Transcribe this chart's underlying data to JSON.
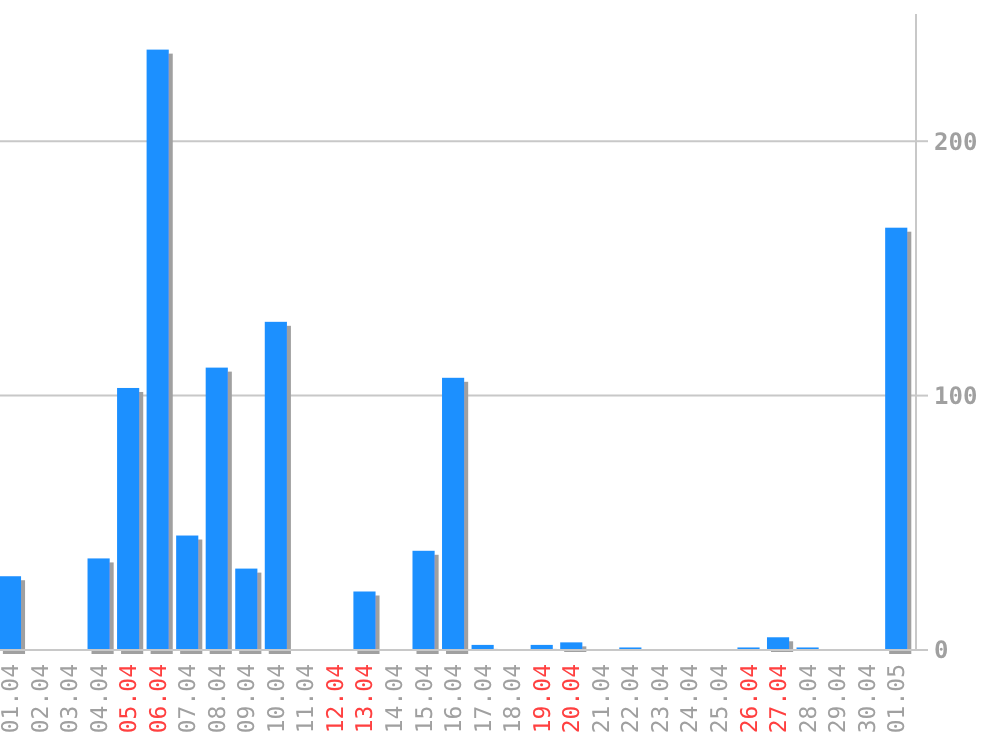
{
  "chart_data": {
    "type": "bar",
    "categories": [
      "01.04",
      "02.04",
      "03.04",
      "04.04",
      "05.04",
      "06.04",
      "07.04",
      "08.04",
      "09.04",
      "10.04",
      "11.04",
      "12.04",
      "13.04",
      "14.04",
      "15.04",
      "16.04",
      "17.04",
      "18.04",
      "19.04",
      "20.04",
      "21.04",
      "22.04",
      "23.04",
      "24.04",
      "25.04",
      "26.04",
      "27.04",
      "28.04",
      "29.04",
      "30.04",
      "01.05"
    ],
    "values": [
      29,
      0,
      0,
      36,
      103,
      236,
      45,
      111,
      32,
      129,
      0,
      0,
      23,
      0,
      39,
      107,
      2,
      0,
      2,
      3,
      0,
      1,
      0,
      0,
      0,
      1,
      5,
      1,
      0,
      0,
      166
    ],
    "color": "#1e90ff",
    "ylim": [
      0,
      250
    ],
    "yticks": [
      0,
      100,
      200
    ],
    "grid": "y"
  }
}
